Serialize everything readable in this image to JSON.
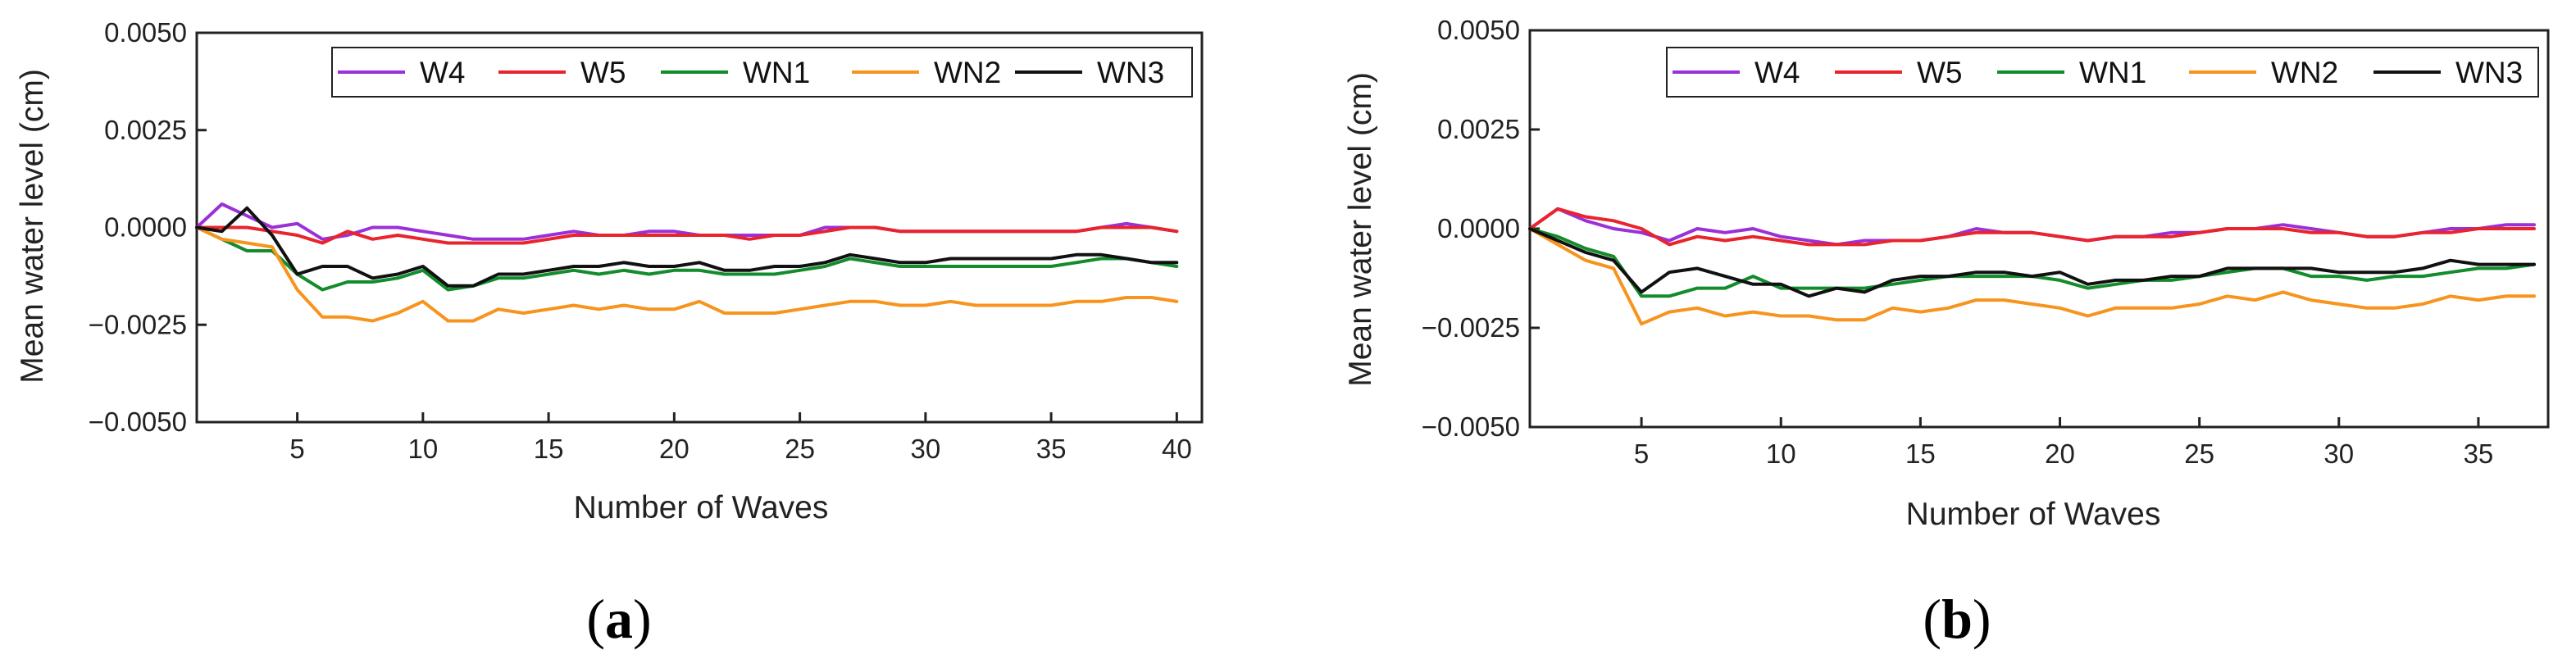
{
  "chart_data": [
    {
      "type": "line",
      "caption": "(a)",
      "caption_letter": "a",
      "xlabel": "Number of Waves",
      "ylabel": "Mean water level (cm)",
      "xlim": [
        1,
        41
      ],
      "ylim": [
        -0.005,
        0.005
      ],
      "xticks": [
        5,
        10,
        15,
        20,
        25,
        30,
        35,
        40
      ],
      "yticks": [
        -0.005,
        -0.0025,
        0.0,
        0.0025,
        0.005
      ],
      "ytick_labels": [
        "−0.0050",
        "−0.0025",
        "0.0000",
        "0.0025",
        "0.0050"
      ],
      "grid": false,
      "legend_position": "top-right",
      "x": [
        1,
        2,
        3,
        4,
        5,
        6,
        7,
        8,
        9,
        10,
        11,
        12,
        13,
        14,
        15,
        16,
        17,
        18,
        19,
        20,
        21,
        22,
        23,
        24,
        25,
        26,
        27,
        28,
        29,
        30,
        31,
        32,
        33,
        34,
        35,
        36,
        37,
        38,
        39,
        40
      ],
      "series": [
        {
          "name": "W4",
          "color": "#9b30d9",
          "values": [
            0.0,
            0.0006,
            0.0003,
            0.0,
            0.0001,
            -0.0003,
            -0.0002,
            0.0,
            0.0,
            -0.0001,
            -0.0002,
            -0.0003,
            -0.0003,
            -0.0003,
            -0.0002,
            -0.0001,
            -0.0002,
            -0.0002,
            -0.0001,
            -0.0001,
            -0.0002,
            -0.0002,
            -0.0002,
            -0.0002,
            -0.0002,
            0.0,
            0.0,
            0.0,
            -0.0001,
            -0.0001,
            -0.0001,
            -0.0001,
            -0.0001,
            -0.0001,
            -0.0001,
            -0.0001,
            0.0,
            0.0001,
            0.0,
            -0.0001
          ]
        },
        {
          "name": "W5",
          "color": "#e8242c",
          "values": [
            0.0,
            0.0,
            0.0,
            -0.0001,
            -0.0002,
            -0.0004,
            -0.0001,
            -0.0003,
            -0.0002,
            -0.0003,
            -0.0004,
            -0.0004,
            -0.0004,
            -0.0004,
            -0.0003,
            -0.0002,
            -0.0002,
            -0.0002,
            -0.0002,
            -0.0002,
            -0.0002,
            -0.0002,
            -0.0003,
            -0.0002,
            -0.0002,
            -0.0001,
            0.0,
            0.0,
            -0.0001,
            -0.0001,
            -0.0001,
            -0.0001,
            -0.0001,
            -0.0001,
            -0.0001,
            -0.0001,
            0.0,
            0.0,
            0.0,
            -0.0001
          ]
        },
        {
          "name": "WN1",
          "color": "#138c2c",
          "values": [
            0.0,
            -0.0003,
            -0.0006,
            -0.0006,
            -0.0012,
            -0.0016,
            -0.0014,
            -0.0014,
            -0.0013,
            -0.0011,
            -0.0016,
            -0.0015,
            -0.0013,
            -0.0013,
            -0.0012,
            -0.0011,
            -0.0012,
            -0.0011,
            -0.0012,
            -0.0011,
            -0.0011,
            -0.0012,
            -0.0012,
            -0.0012,
            -0.0011,
            -0.001,
            -0.0008,
            -0.0009,
            -0.001,
            -0.001,
            -0.001,
            -0.001,
            -0.001,
            -0.001,
            -0.001,
            -0.0009,
            -0.0008,
            -0.0008,
            -0.0009,
            -0.001
          ]
        },
        {
          "name": "WN2",
          "color": "#f7941d",
          "values": [
            0.0,
            -0.0003,
            -0.0004,
            -0.0005,
            -0.0016,
            -0.0023,
            -0.0023,
            -0.0024,
            -0.0022,
            -0.0019,
            -0.0024,
            -0.0024,
            -0.0021,
            -0.0022,
            -0.0021,
            -0.002,
            -0.0021,
            -0.002,
            -0.0021,
            -0.0021,
            -0.0019,
            -0.0022,
            -0.0022,
            -0.0022,
            -0.0021,
            -0.002,
            -0.0019,
            -0.0019,
            -0.002,
            -0.002,
            -0.0019,
            -0.002,
            -0.002,
            -0.002,
            -0.002,
            -0.0019,
            -0.0019,
            -0.0018,
            -0.0018,
            -0.0019
          ]
        },
        {
          "name": "WN3",
          "color": "#111111",
          "values": [
            0.0,
            -0.0001,
            0.0005,
            -0.0002,
            -0.0012,
            -0.001,
            -0.001,
            -0.0013,
            -0.0012,
            -0.001,
            -0.0015,
            -0.0015,
            -0.0012,
            -0.0012,
            -0.0011,
            -0.001,
            -0.001,
            -0.0009,
            -0.001,
            -0.001,
            -0.0009,
            -0.0011,
            -0.0011,
            -0.001,
            -0.001,
            -0.0009,
            -0.0007,
            -0.0008,
            -0.0009,
            -0.0009,
            -0.0008,
            -0.0008,
            -0.0008,
            -0.0008,
            -0.0008,
            -0.0007,
            -0.0007,
            -0.0008,
            -0.0009,
            -0.0009
          ]
        }
      ]
    },
    {
      "type": "line",
      "caption": "(b)",
      "caption_letter": "b",
      "xlabel": "Number of Waves",
      "ylabel": "Mean water level (cm)",
      "xlim": [
        1,
        37.5
      ],
      "ylim": [
        -0.005,
        0.005
      ],
      "xticks": [
        5,
        10,
        15,
        20,
        25,
        30,
        35
      ],
      "yticks": [
        -0.005,
        -0.0025,
        0.0,
        0.0025,
        0.005
      ],
      "ytick_labels": [
        "−0.0050",
        "−0.0025",
        "0.0000",
        "0.0025",
        "0.0050"
      ],
      "grid": false,
      "legend_position": "top-right",
      "x": [
        1,
        2,
        3,
        4,
        5,
        6,
        7,
        8,
        9,
        10,
        11,
        12,
        13,
        14,
        15,
        16,
        17,
        18,
        19,
        20,
        21,
        22,
        23,
        24,
        25,
        26,
        27,
        28,
        29,
        30,
        31,
        32,
        33,
        34,
        35,
        36,
        37
      ],
      "series": [
        {
          "name": "W4",
          "color": "#9b30d9",
          "values": [
            0.0,
            0.0005,
            0.0002,
            0.0,
            -0.0001,
            -0.0003,
            0.0,
            -0.0001,
            0.0,
            -0.0002,
            -0.0003,
            -0.0004,
            -0.0003,
            -0.0003,
            -0.0003,
            -0.0002,
            0.0,
            -0.0001,
            -0.0001,
            -0.0002,
            -0.0003,
            -0.0002,
            -0.0002,
            -0.0001,
            -0.0001,
            0.0,
            0.0,
            0.0001,
            0.0,
            -0.0001,
            -0.0002,
            -0.0002,
            -0.0001,
            0.0,
            0.0,
            0.0001,
            0.0001
          ]
        },
        {
          "name": "W5",
          "color": "#e8242c",
          "values": [
            0.0,
            0.0005,
            0.0003,
            0.0002,
            0.0,
            -0.0004,
            -0.0002,
            -0.0003,
            -0.0002,
            -0.0003,
            -0.0004,
            -0.0004,
            -0.0004,
            -0.0003,
            -0.0003,
            -0.0002,
            -0.0001,
            -0.0001,
            -0.0001,
            -0.0002,
            -0.0003,
            -0.0002,
            -0.0002,
            -0.0002,
            -0.0001,
            0.0,
            0.0,
            0.0,
            -0.0001,
            -0.0001,
            -0.0002,
            -0.0002,
            -0.0001,
            -0.0001,
            0.0,
            0.0,
            0.0
          ]
        },
        {
          "name": "WN1",
          "color": "#138c2c",
          "values": [
            0.0,
            -0.0002,
            -0.0005,
            -0.0007,
            -0.0017,
            -0.0017,
            -0.0015,
            -0.0015,
            -0.0012,
            -0.0015,
            -0.0015,
            -0.0015,
            -0.0015,
            -0.0014,
            -0.0013,
            -0.0012,
            -0.0012,
            -0.0012,
            -0.0012,
            -0.0013,
            -0.0015,
            -0.0014,
            -0.0013,
            -0.0013,
            -0.0012,
            -0.0011,
            -0.001,
            -0.001,
            -0.0012,
            -0.0012,
            -0.0013,
            -0.0012,
            -0.0012,
            -0.0011,
            -0.001,
            -0.001,
            -0.0009
          ]
        },
        {
          "name": "WN2",
          "color": "#f7941d",
          "values": [
            0.0,
            -0.0004,
            -0.0008,
            -0.001,
            -0.0024,
            -0.0021,
            -0.002,
            -0.0022,
            -0.0021,
            -0.0022,
            -0.0022,
            -0.0023,
            -0.0023,
            -0.002,
            -0.0021,
            -0.002,
            -0.0018,
            -0.0018,
            -0.0019,
            -0.002,
            -0.0022,
            -0.002,
            -0.002,
            -0.002,
            -0.0019,
            -0.0017,
            -0.0018,
            -0.0016,
            -0.0018,
            -0.0019,
            -0.002,
            -0.002,
            -0.0019,
            -0.0017,
            -0.0018,
            -0.0017,
            -0.0017
          ]
        },
        {
          "name": "WN3",
          "color": "#111111",
          "values": [
            0.0,
            -0.0003,
            -0.0006,
            -0.0008,
            -0.0016,
            -0.0011,
            -0.001,
            -0.0012,
            -0.0014,
            -0.0014,
            -0.0017,
            -0.0015,
            -0.0016,
            -0.0013,
            -0.0012,
            -0.0012,
            -0.0011,
            -0.0011,
            -0.0012,
            -0.0011,
            -0.0014,
            -0.0013,
            -0.0013,
            -0.0012,
            -0.0012,
            -0.001,
            -0.001,
            -0.001,
            -0.001,
            -0.0011,
            -0.0011,
            -0.0011,
            -0.001,
            -0.0008,
            -0.0009,
            -0.0009,
            -0.0009
          ]
        }
      ]
    }
  ]
}
